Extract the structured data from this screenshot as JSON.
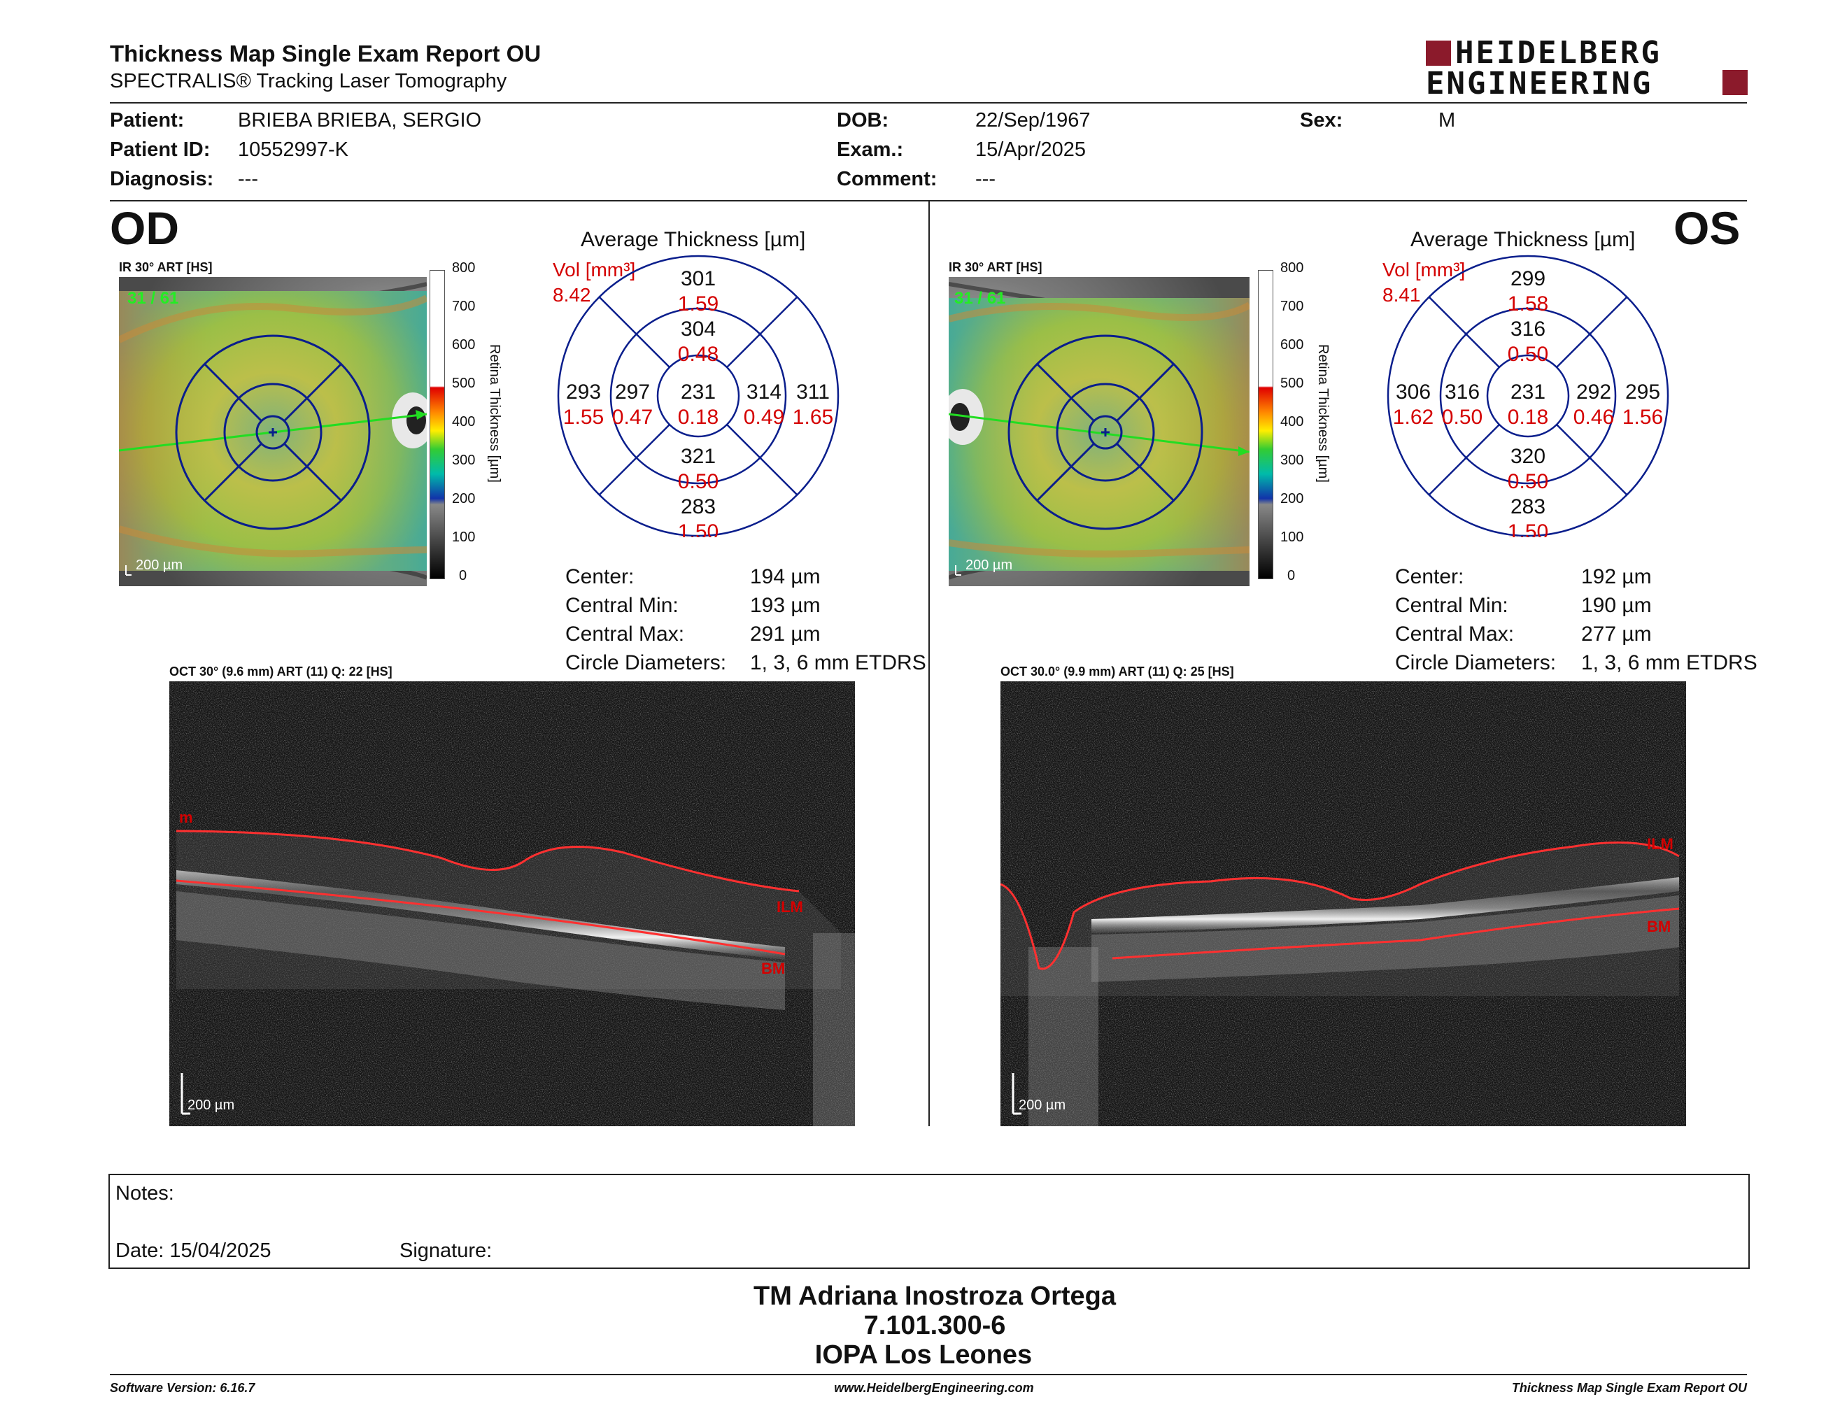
{
  "header": {
    "title": "Thickness Map Single Exam Report OU",
    "subtitle": "SPECTRALIS® Tracking Laser Tomography",
    "logo_line1": "HEIDELBERG",
    "logo_line2": "ENGINEERING"
  },
  "patient": {
    "patient_label": "Patient:",
    "patient_value": "BRIEBA BRIEBA, SERGIO",
    "id_label": "Patient ID:",
    "id_value": "10552997-K",
    "diag_label": "Diagnosis:",
    "diag_value": "---",
    "dob_label": "DOB:",
    "dob_value": "22/Sep/1967",
    "exam_label": "Exam.:",
    "exam_value": "15/Apr/2025",
    "comment_label": "Comment:",
    "comment_value": "---",
    "sex_label": "Sex:",
    "sex_value": "M"
  },
  "colors": {
    "accent_red": "#d40000",
    "grid_blue": "#0a1e8c",
    "scan_line_green": "#22dd22",
    "logo_red": "#8b1a2b"
  },
  "scale": {
    "title": "Retina Thickness [µm]",
    "ticks": [
      "800",
      "700",
      "600",
      "500",
      "400",
      "300",
      "200",
      "100",
      "0"
    ]
  },
  "od": {
    "eye": "OD",
    "ir_label": "IR 30° ART [HS]",
    "frame_label": "31 / 61",
    "scale_bar": "200 µm",
    "chart_title": "Average Thickness [µm]",
    "vol_label": "Vol [mm³]",
    "vol_value": "8.42",
    "etdrs": {
      "center": {
        "thickness": "231",
        "volume": "0.18"
      },
      "inner_superior": {
        "thickness": "304",
        "volume": "0.48"
      },
      "inner_inferior": {
        "thickness": "321",
        "volume": "0.50"
      },
      "inner_left": {
        "thickness": "297",
        "volume": "0.47"
      },
      "inner_right": {
        "thickness": "314",
        "volume": "0.49"
      },
      "outer_superior": {
        "thickness": "301",
        "volume": "1.59"
      },
      "outer_inferior": {
        "thickness": "283",
        "volume": "1.50"
      },
      "outer_left": {
        "thickness": "293",
        "volume": "1.55"
      },
      "outer_right": {
        "thickness": "311",
        "volume": "1.65"
      }
    },
    "stats": [
      {
        "label": "Center:",
        "value": "194 µm"
      },
      {
        "label": "Central Min:",
        "value": "193 µm"
      },
      {
        "label": "Central Max:",
        "value": "291 µm"
      },
      {
        "label": "Circle Diameters:",
        "value": "1, 3, 6 mm ETDRS"
      }
    ],
    "oct_label": "OCT 30° (9.6 mm) ART (11) Q: 22 [HS]",
    "oct_scale": "200 µm",
    "ilm_label": "ILM",
    "ilm_partial": "m",
    "bm_label": "BM"
  },
  "os": {
    "eye": "OS",
    "ir_label": "IR 30° ART [HS]",
    "frame_label": "31 / 61",
    "scale_bar": "200 µm",
    "chart_title": "Average Thickness [µm]",
    "vol_label": "Vol [mm³]",
    "vol_value": "8.41",
    "etdrs": {
      "center": {
        "thickness": "231",
        "volume": "0.18"
      },
      "inner_superior": {
        "thickness": "316",
        "volume": "0.50"
      },
      "inner_inferior": {
        "thickness": "320",
        "volume": "0.50"
      },
      "inner_left": {
        "thickness": "316",
        "volume": "0.50"
      },
      "inner_right": {
        "thickness": "292",
        "volume": "0.46"
      },
      "outer_superior": {
        "thickness": "299",
        "volume": "1.58"
      },
      "outer_inferior": {
        "thickness": "283",
        "volume": "1.50"
      },
      "outer_left": {
        "thickness": "306",
        "volume": "1.62"
      },
      "outer_right": {
        "thickness": "295",
        "volume": "1.56"
      }
    },
    "stats": [
      {
        "label": "Center:",
        "value": "192 µm"
      },
      {
        "label": "Central Min:",
        "value": "190 µm"
      },
      {
        "label": "Central Max:",
        "value": "277 µm"
      },
      {
        "label": "Circle Diameters:",
        "value": "1, 3, 6 mm ETDRS"
      }
    ],
    "oct_label": "OCT 30.0° (9.9 mm) ART (11) Q: 25 [HS]",
    "oct_scale": "200 µm",
    "ilm_label": "ILM",
    "bm_label": "BM"
  },
  "notes": {
    "notes_label": "Notes:",
    "date_label": "Date: 15/04/2025",
    "signature_label": "Signature:"
  },
  "signer": {
    "name": "TM Adriana Inostroza Ortega",
    "id": "7.101.300-6",
    "org": "IOPA Los Leones"
  },
  "footer": {
    "software": "Software Version: 6.16.7",
    "website": "www.HeidelbergEngineering.com",
    "report": "Thickness Map Single Exam Report OU"
  }
}
